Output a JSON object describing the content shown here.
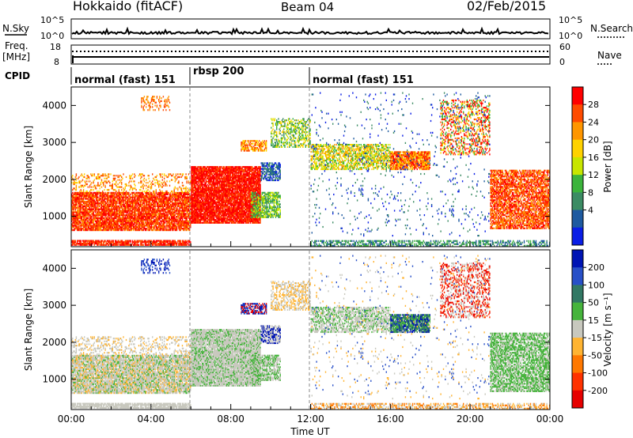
{
  "header": {
    "title": "Hokkaido (fitACF)",
    "beam": "Beam 04",
    "date": "02/Feb/2015"
  },
  "panels": {
    "nsky": {
      "label": "N.Sky",
      "right_label": "N.Search",
      "ticks": [
        "10^5",
        "10^0"
      ]
    },
    "freq": {
      "label_top": "Freq.",
      "label_bottom": "[MHz]",
      "ticks": [
        "18",
        "8"
      ],
      "right_label": "Nave",
      "right_ticks": [
        "60",
        "0"
      ]
    },
    "cpid": {
      "label": "CPID",
      "segments": [
        {
          "label": "normal (fast) 151",
          "start": 0,
          "end": 6
        },
        {
          "label": "rbsp 200",
          "start": 6,
          "end": 12
        },
        {
          "label": "normal (fast) 151",
          "start": 12,
          "end": 24
        }
      ]
    }
  },
  "chart_data": [
    {
      "type": "heatmap",
      "quantity": "power",
      "ylabel": "Slant Range [km]",
      "xlabel": "Time UT",
      "x_ticks": [
        "00:00",
        "04:00",
        "08:00",
        "12:00",
        "16:00",
        "20:00",
        "00:00"
      ],
      "x_range_hours": [
        0,
        24
      ],
      "y_ticks": [
        1000,
        2000,
        3000,
        4000
      ],
      "y_range_km": [
        180,
        4500
      ],
      "colorbar": {
        "label": "Power [dB]",
        "tick_labels": [
          "28",
          "24",
          "20",
          "16",
          "12",
          "8",
          "4"
        ],
        "colors": [
          "#ff0000",
          "#ff4b00",
          "#ff9600",
          "#ffd200",
          "#c8e600",
          "#3cb43c",
          "#3c8c64",
          "#1e5aa0",
          "#0a1ee6"
        ]
      }
    },
    {
      "type": "heatmap",
      "quantity": "velocity",
      "ylabel": "Slant Range [km]",
      "xlabel": "Time UT",
      "x_ticks": [
        "00:00",
        "04:00",
        "08:00",
        "12:00",
        "16:00",
        "20:00",
        "00:00"
      ],
      "x_range_hours": [
        0,
        24
      ],
      "y_ticks": [
        1000,
        2000,
        3000,
        4000
      ],
      "y_range_km": [
        180,
        4500
      ],
      "colorbar": {
        "label": "Velocity [m s⁻¹]",
        "tick_labels": [
          "200",
          "100",
          "50",
          "15",
          "-15",
          "-50",
          "-100",
          "-200"
        ],
        "colors": [
          "#0014b4",
          "#2850c8",
          "#327864",
          "#46b43c",
          "#c8c8be",
          "#ffb432",
          "#ff7800",
          "#ff3200",
          "#e60000"
        ]
      }
    }
  ],
  "xlabel": "Time UT"
}
